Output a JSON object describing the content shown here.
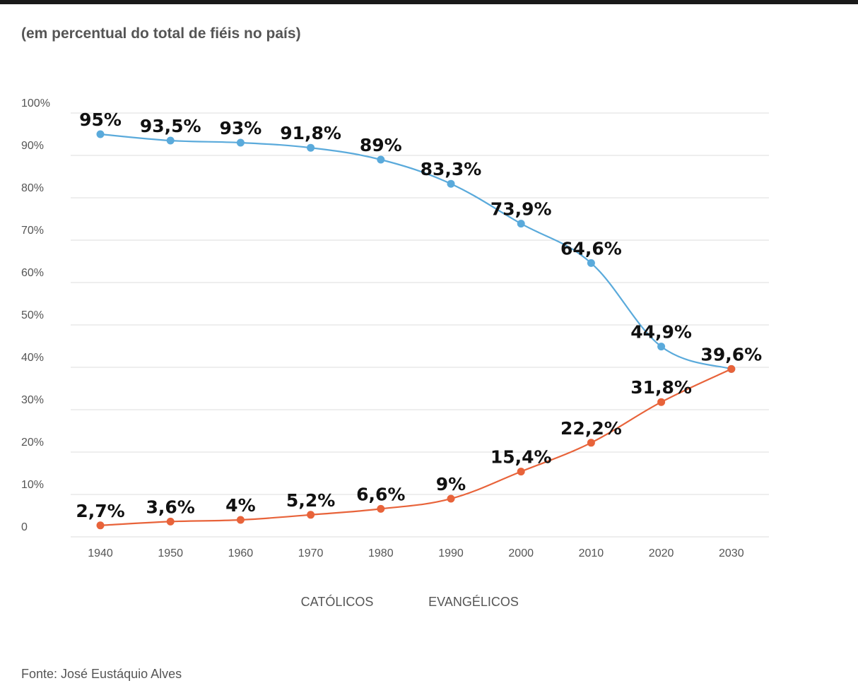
{
  "subtitle": "(em percentual do total de fiéis no país)",
  "source": "Fonte: José Eustáquio Alves",
  "chart_data": {
    "type": "line",
    "title": "",
    "subtitle": "(em percentual do total de fiéis no país)",
    "xlabel": "",
    "ylabel": "",
    "x": [
      "1940",
      "1950",
      "1960",
      "1970",
      "1980",
      "1990",
      "2000",
      "2010",
      "2020",
      "2030"
    ],
    "ylim": [
      0,
      100
    ],
    "y_ticks": [
      {
        "value": 0,
        "label": "0"
      },
      {
        "value": 10,
        "label": "10%"
      },
      {
        "value": 20,
        "label": "20%"
      },
      {
        "value": 30,
        "label": "30%"
      },
      {
        "value": 40,
        "label": "40%"
      },
      {
        "value": 50,
        "label": "50%"
      },
      {
        "value": 60,
        "label": "60%"
      },
      {
        "value": 70,
        "label": "70%"
      },
      {
        "value": 80,
        "label": "80%"
      },
      {
        "value": 90,
        "label": "90%"
      },
      {
        "value": 100,
        "label": "100%"
      }
    ],
    "grid": true,
    "legend_position": "bottom-center",
    "series": [
      {
        "name": "CATÓLICOS",
        "color": "#5aaadb",
        "values": [
          95,
          93.5,
          93,
          91.8,
          89,
          83.3,
          73.9,
          64.6,
          44.9,
          39.6
        ],
        "labels": [
          "95%",
          "93,5%",
          "93%",
          "91,8%",
          "89%",
          "83,3%",
          "73,9%",
          "64,6%",
          "44,9%",
          "39,6%"
        ]
      },
      {
        "name": "EVANGÉLICOS",
        "color": "#e8633a",
        "values": [
          2.7,
          3.6,
          4,
          5.2,
          6.6,
          9,
          15.4,
          22.2,
          31.8,
          39.6
        ],
        "labels": [
          "2,7%",
          "3,6%",
          "4%",
          "5,2%",
          "6,6%",
          "9%",
          "15,4%",
          "22,2%",
          "31,8%",
          ""
        ]
      }
    ],
    "colors": {
      "catolicos": "#5aaadb",
      "evangelicos": "#e8633a",
      "grid": "#dddddd"
    }
  }
}
